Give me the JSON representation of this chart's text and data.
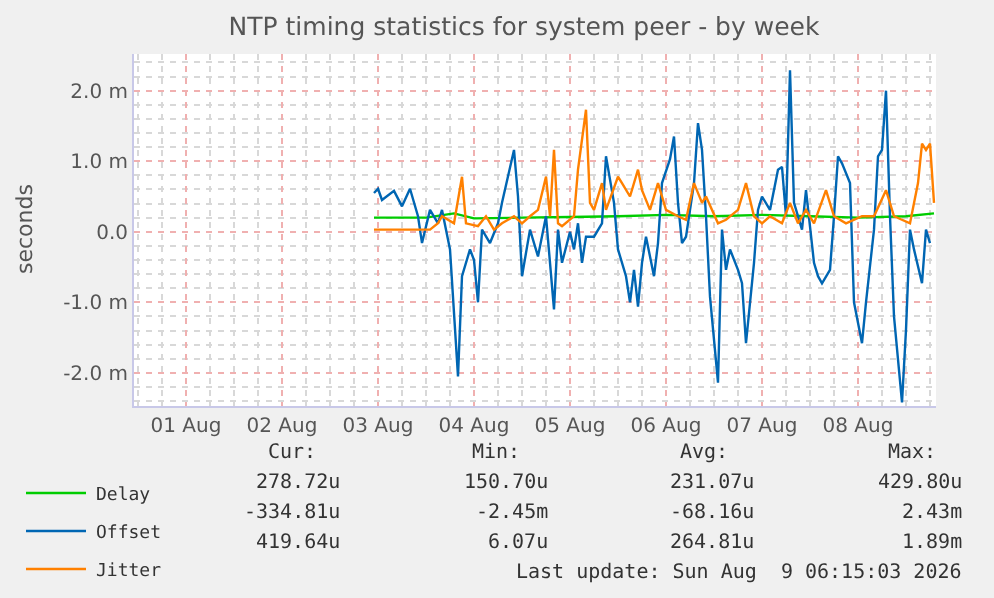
{
  "chart_data": {
    "type": "line",
    "title": "NTP timing statistics for system peer - by week",
    "ylabel": "seconds",
    "xlim": [
      "2026-07-31T23:00",
      "2026-08-09T07:30"
    ],
    "xticks": [
      {
        "value": "2026-08-01T12:00",
        "label": "01 Aug"
      },
      {
        "value": "2026-08-02T12:00",
        "label": "02 Aug"
      },
      {
        "value": "2026-08-03T12:00",
        "label": "03 Aug"
      },
      {
        "value": "2026-08-04T12:00",
        "label": "04 Aug"
      },
      {
        "value": "2026-08-05T12:00",
        "label": "05 Aug"
      },
      {
        "value": "2026-08-06T12:00",
        "label": "06 Aug"
      },
      {
        "value": "2026-08-07T12:00",
        "label": "07 Aug"
      },
      {
        "value": "2026-08-08T12:00",
        "label": "08 Aug"
      }
    ],
    "ylim": [
      -2.47,
      2.52
    ],
    "yticks": [
      {
        "value": -2,
        "label": "-2.0 m"
      },
      {
        "value": -1,
        "label": "-1.0 m"
      },
      {
        "value": 0,
        "label": "0.0"
      },
      {
        "value": 1,
        "label": "1.0 m"
      },
      {
        "value": 2,
        "label": "2.0 m"
      }
    ],
    "grid": true,
    "legend": "bottom left",
    "series": [
      {
        "name": "Delay",
        "color": "#00cc00",
        "x": [
          "2026-08-03T11:00",
          "2026-08-04T00:00",
          "2026-08-04T07:00",
          "2026-08-04T12:00",
          "2026-08-05T00:00",
          "2026-08-05T12:00",
          "2026-08-06T00:00",
          "2026-08-06T12:00",
          "2026-08-07T00:00",
          "2026-08-07T12:00",
          "2026-08-08T00:00",
          "2026-08-08T12:00",
          "2026-08-09T00:00",
          "2026-08-09T07:00"
        ],
        "values": [
          0.2,
          0.2,
          0.26,
          0.19,
          0.2,
          0.21,
          0.22,
          0.24,
          0.22,
          0.24,
          0.22,
          0.2,
          0.22,
          0.26
        ]
      },
      {
        "name": "Offset",
        "color": "#0066b3",
        "x": [
          "2026-08-03T11:00",
          "2026-08-03T12:00",
          "2026-08-03T13:00",
          "2026-08-03T16:00",
          "2026-08-03T18:00",
          "2026-08-03T20:00",
          "2026-08-03T22:00",
          "2026-08-03T23:00",
          "2026-08-04T01:00",
          "2026-08-04T03:00",
          "2026-08-04T04:00",
          "2026-08-04T06:00",
          "2026-08-04T08:00",
          "2026-08-04T09:00",
          "2026-08-04T11:00",
          "2026-08-04T12:00",
          "2026-08-04T13:00",
          "2026-08-04T14:00",
          "2026-08-04T16:00",
          "2026-08-04T18:00",
          "2026-08-04T19:00",
          "2026-08-04T22:00",
          "2026-08-04T23:00",
          "2026-08-05T00:00",
          "2026-08-05T02:00",
          "2026-08-05T04:00",
          "2026-08-05T06:00",
          "2026-08-05T08:00",
          "2026-08-05T09:00",
          "2026-08-05T10:00",
          "2026-08-05T12:00",
          "2026-08-05T13:00",
          "2026-08-05T14:00",
          "2026-08-05T15:00",
          "2026-08-05T16:00",
          "2026-08-05T18:00",
          "2026-08-05T20:00",
          "2026-08-05T21:00",
          "2026-08-05T23:00",
          "2026-08-06T00:00",
          "2026-08-06T02:00",
          "2026-08-06T03:00",
          "2026-08-06T04:00",
          "2026-08-06T05:00",
          "2026-08-06T06:00",
          "2026-08-06T07:00",
          "2026-08-06T09:00",
          "2026-08-06T10:00",
          "2026-08-06T11:00",
          "2026-08-06T13:00",
          "2026-08-06T14:00",
          "2026-08-06T15:00",
          "2026-08-06T16:00",
          "2026-08-06T17:00",
          "2026-08-06T19:00",
          "2026-08-06T20:00",
          "2026-08-06T21:00",
          "2026-08-06T22:00",
          "2026-08-06T23:00",
          "2026-08-07T01:00",
          "2026-08-07T02:00",
          "2026-08-07T03:00",
          "2026-08-07T04:00",
          "2026-08-07T06:00",
          "2026-08-07T07:00",
          "2026-08-07T08:00",
          "2026-08-07T10:00",
          "2026-08-07T11:00",
          "2026-08-07T12:00",
          "2026-08-07T14:00",
          "2026-08-07T16:00",
          "2026-08-07T17:00",
          "2026-08-07T18:00",
          "2026-08-07T19:00",
          "2026-08-07T20:00",
          "2026-08-07T22:00",
          "2026-08-07T23:00",
          "2026-08-08T01:00",
          "2026-08-08T02:00",
          "2026-08-08T03:00",
          "2026-08-08T05:00",
          "2026-08-08T06:00",
          "2026-08-08T07:00",
          "2026-08-08T08:00",
          "2026-08-08T10:00",
          "2026-08-08T11:00",
          "2026-08-08T13:00",
          "2026-08-08T14:00",
          "2026-08-08T16:00",
          "2026-08-08T17:00",
          "2026-08-08T18:00",
          "2026-08-08T19:00",
          "2026-08-08T20:00",
          "2026-08-08T21:00",
          "2026-08-08T23:00",
          "2026-08-09T00:00",
          "2026-08-09T01:00",
          "2026-08-09T02:00",
          "2026-08-09T04:00",
          "2026-08-09T05:00",
          "2026-08-09T06:00"
        ],
        "values": [
          0.55,
          0.61,
          0.45,
          0.58,
          0.36,
          0.61,
          0.22,
          -0.16,
          0.31,
          0.12,
          0.31,
          -0.25,
          -2.05,
          -0.63,
          -0.25,
          -0.4,
          -1.0,
          0.03,
          -0.16,
          0.12,
          0.41,
          1.16,
          0.5,
          -0.63,
          0.03,
          -0.35,
          0.22,
          -1.1,
          0.03,
          -0.44,
          0.0,
          -0.25,
          0.12,
          -0.44,
          -0.07,
          -0.07,
          0.12,
          1.07,
          0.41,
          -0.25,
          -0.63,
          -1.0,
          -0.54,
          -1.06,
          -0.44,
          -0.07,
          -0.63,
          -0.16,
          0.69,
          1.03,
          1.35,
          0.41,
          -0.16,
          -0.07,
          0.69,
          1.54,
          1.16,
          0.22,
          -0.92,
          -2.14,
          0.03,
          -0.54,
          -0.25,
          -0.54,
          -0.73,
          -1.58,
          -0.44,
          0.31,
          0.5,
          0.31,
          0.88,
          0.92,
          0.22,
          2.29,
          0.41,
          0.03,
          0.59,
          -0.44,
          -0.63,
          -0.73,
          -0.54,
          0.22,
          1.07,
          0.97,
          0.69,
          -1.0,
          -1.58,
          -1.0,
          0.03,
          1.07,
          1.16,
          2.0,
          0.22,
          -1.2,
          -2.42,
          -1.39,
          0.03,
          -0.25,
          -0.73,
          0.03,
          -0.16
        ]
      },
      {
        "name": "Jitter",
        "color": "#ff8000",
        "x": [
          "2026-08-03T11:00",
          "2026-08-03T18:00",
          "2026-08-04T01:00",
          "2026-08-04T03:00",
          "2026-08-04T04:00",
          "2026-08-04T07:00",
          "2026-08-04T09:00",
          "2026-08-04T10:00",
          "2026-08-04T13:00",
          "2026-08-04T15:00",
          "2026-08-04T17:00",
          "2026-08-04T19:00",
          "2026-08-04T22:00",
          "2026-08-05T00:00",
          "2026-08-05T02:00",
          "2026-08-05T04:00",
          "2026-08-05T06:00",
          "2026-08-05T07:00",
          "2026-08-05T08:00",
          "2026-08-05T09:00",
          "2026-08-05T10:00",
          "2026-08-05T13:00",
          "2026-08-05T14:00",
          "2026-08-05T16:00",
          "2026-08-05T17:00",
          "2026-08-05T18:00",
          "2026-08-05T20:00",
          "2026-08-05T21:00",
          "2026-08-06T00:00",
          "2026-08-06T01:00",
          "2026-08-06T03:00",
          "2026-08-06T05:00",
          "2026-08-06T06:00",
          "2026-08-06T08:00",
          "2026-08-06T10:00",
          "2026-08-06T12:00",
          "2026-08-06T15:00",
          "2026-08-06T17:00",
          "2026-08-06T19:00",
          "2026-08-06T21:00",
          "2026-08-06T22:00",
          "2026-08-07T01:00",
          "2026-08-07T03:00",
          "2026-08-07T06:00",
          "2026-08-07T08:00",
          "2026-08-07T10:00",
          "2026-08-07T12:00",
          "2026-08-07T14:00",
          "2026-08-07T17:00",
          "2026-08-07T19:00",
          "2026-08-07T21:00",
          "2026-08-07T23:00",
          "2026-08-08T01:00",
          "2026-08-08T04:00",
          "2026-08-08T06:00",
          "2026-08-08T09:00",
          "2026-08-08T13:00",
          "2026-08-08T16:00",
          "2026-08-08T19:00",
          "2026-08-08T21:00",
          "2026-08-09T01:00",
          "2026-08-09T03:00",
          "2026-08-09T04:00",
          "2026-08-09T05:00",
          "2026-08-09T06:00",
          "2026-08-09T07:00"
        ],
        "values": [
          0.03,
          0.03,
          0.03,
          0.12,
          0.22,
          0.12,
          0.78,
          0.12,
          0.08,
          0.22,
          0.03,
          0.12,
          0.22,
          0.12,
          0.22,
          0.31,
          0.78,
          0.22,
          1.16,
          0.12,
          0.08,
          0.22,
          0.88,
          1.73,
          0.41,
          0.31,
          0.69,
          0.31,
          0.78,
          0.69,
          0.5,
          0.88,
          0.59,
          0.31,
          0.69,
          0.31,
          0.22,
          0.17,
          0.69,
          0.41,
          0.5,
          0.12,
          0.17,
          0.31,
          0.69,
          0.22,
          0.12,
          0.22,
          0.12,
          0.41,
          0.12,
          0.31,
          0.12,
          0.59,
          0.22,
          0.12,
          0.22,
          0.22,
          0.59,
          0.22,
          0.12,
          0.69,
          1.25,
          1.16,
          1.25,
          0.41
        ]
      }
    ],
    "annotations": [
      "Cur:",
      "Min:",
      "Avg:",
      "Max:",
      "278.72u",
      "150.70u",
      "231.07u",
      "429.80u",
      "-334.81u",
      "-2.45m",
      "-68.16u",
      "2.43m",
      "419.64u",
      "6.07u",
      "264.81u",
      "1.89m",
      "Last update: Sun Aug  9 06:15:03 2026"
    ]
  }
}
